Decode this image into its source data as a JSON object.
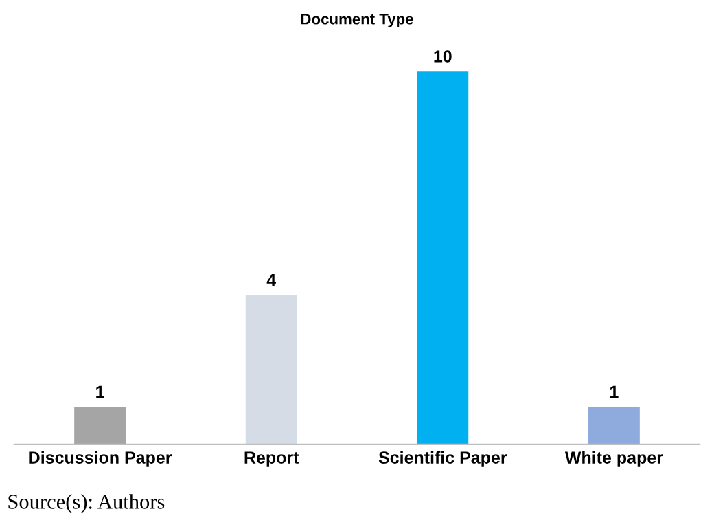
{
  "chart_data": {
    "type": "bar",
    "title": "Document Type",
    "categories": [
      "Discussion Paper",
      "Report",
      "Scientific Paper",
      "White paper"
    ],
    "values": [
      1,
      4,
      10,
      1
    ],
    "colors": [
      "#a5a5a5",
      "#d6dce5",
      "#00b0f0",
      "#8faadc"
    ],
    "data_labels": true,
    "annotations": [
      "Source(s): Authors"
    ]
  }
}
